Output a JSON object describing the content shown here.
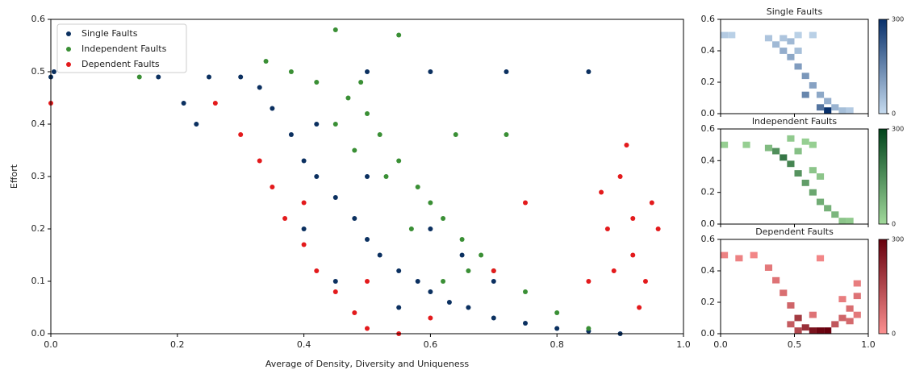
{
  "chart_data": [
    {
      "type": "scatter",
      "x_label": "Average of Density, Diversity and Uniqueness",
      "y_label": "Effort",
      "xlim": [
        0,
        1
      ],
      "ylim": [
        0,
        0.6
      ],
      "xticks": [
        {
          "value": 0,
          "label": "0.0"
        },
        {
          "value": 0.2,
          "label": "0.2"
        },
        {
          "value": 0.4,
          "label": "0.4"
        },
        {
          "value": 0.6,
          "label": "0.6"
        },
        {
          "value": 0.8,
          "label": "0.8"
        },
        {
          "value": 1,
          "label": "1.0"
        }
      ],
      "yticks": [
        {
          "value": 0,
          "label": "0.0"
        },
        {
          "value": 0.1,
          "label": "0.1"
        },
        {
          "value": 0.2,
          "label": "0.2"
        },
        {
          "value": 0.3,
          "label": "0.3"
        },
        {
          "value": 0.4,
          "label": "0.4"
        },
        {
          "value": 0.5,
          "label": "0.5"
        },
        {
          "value": 0.6,
          "label": "0.6"
        }
      ],
      "legend": "upper-left",
      "series": [
        {
          "name": "Single Faults",
          "color": "#0b3060",
          "x": [
            0.0,
            0.005,
            0.17,
            0.21,
            0.23,
            0.25,
            0.3,
            0.33,
            0.35,
            0.38,
            0.4,
            0.42,
            0.45,
            0.48,
            0.5,
            0.52,
            0.55,
            0.58,
            0.6,
            0.63,
            0.66,
            0.7,
            0.75,
            0.8,
            0.85,
            0.9,
            0.5,
            0.6,
            0.72,
            0.85,
            0.4,
            0.45,
            0.55,
            0.5,
            0.6,
            0.7,
            0.65,
            0.42
          ],
          "values": [
            0.49,
            0.5,
            0.49,
            0.44,
            0.4,
            0.49,
            0.49,
            0.47,
            0.43,
            0.38,
            0.33,
            0.3,
            0.26,
            0.22,
            0.18,
            0.15,
            0.12,
            0.1,
            0.08,
            0.06,
            0.05,
            0.03,
            0.02,
            0.01,
            0.005,
            0.0,
            0.5,
            0.5,
            0.5,
            0.5,
            0.2,
            0.1,
            0.05,
            0.3,
            0.2,
            0.1,
            0.15,
            0.4
          ]
        },
        {
          "name": "Independent Faults",
          "color": "#3a8f35",
          "x": [
            0.14,
            0.34,
            0.38,
            0.42,
            0.45,
            0.47,
            0.5,
            0.55,
            0.52,
            0.55,
            0.58,
            0.6,
            0.62,
            0.64,
            0.65,
            0.68,
            0.72,
            0.7,
            0.75,
            0.8,
            0.85,
            0.48,
            0.53,
            0.57,
            0.66,
            0.62,
            0.45,
            0.49
          ],
          "values": [
            0.49,
            0.52,
            0.5,
            0.48,
            0.58,
            0.45,
            0.42,
            0.57,
            0.38,
            0.33,
            0.28,
            0.25,
            0.22,
            0.38,
            0.18,
            0.15,
            0.38,
            0.12,
            0.08,
            0.04,
            0.01,
            0.35,
            0.3,
            0.2,
            0.12,
            0.1,
            0.4,
            0.48
          ]
        },
        {
          "name": "Dependent Faults",
          "color": "#e31a1c",
          "x": [
            0.0,
            0.26,
            0.3,
            0.33,
            0.35,
            0.37,
            0.4,
            0.42,
            0.45,
            0.48,
            0.5,
            0.55,
            0.6,
            0.7,
            0.75,
            0.88,
            0.9,
            0.92,
            0.94,
            0.95,
            0.93,
            0.91,
            0.96,
            0.89,
            0.87,
            0.85,
            0.92,
            0.5,
            0.4
          ],
          "values": [
            0.44,
            0.44,
            0.38,
            0.33,
            0.28,
            0.22,
            0.17,
            0.12,
            0.08,
            0.04,
            0.01,
            0.0,
            0.03,
            0.12,
            0.25,
            0.2,
            0.3,
            0.15,
            0.1,
            0.25,
            0.05,
            0.36,
            0.2,
            0.12,
            0.27,
            0.1,
            0.22,
            0.1,
            0.25
          ]
        }
      ]
    },
    {
      "type": "heatmap",
      "title": "Single Faults",
      "xlim": [
        0,
        1
      ],
      "ylim": [
        0,
        0.6
      ],
      "yticks": [
        {
          "value": 0,
          "label": "0.0"
        },
        {
          "value": 0.2,
          "label": "0.2"
        },
        {
          "value": 0.4,
          "label": "0.4"
        },
        {
          "value": 0.6,
          "label": "0.6"
        }
      ],
      "bin_size": [
        0.05,
        0.04
      ],
      "colors": [
        "#c6dbef",
        "#08306b"
      ],
      "clim": [
        0,
        300
      ],
      "cticks": [
        0,
        300
      ],
      "x": [
        0.0,
        0.05,
        0.3,
        0.35,
        0.4,
        0.45,
        0.5,
        0.55,
        0.6,
        0.65,
        0.7,
        0.75,
        0.8,
        0.85,
        0.5,
        0.6,
        0.7,
        0.55,
        0.65,
        0.45,
        0.4,
        0.5
      ],
      "y": [
        0.48,
        0.48,
        0.46,
        0.42,
        0.38,
        0.34,
        0.28,
        0.22,
        0.16,
        0.1,
        0.06,
        0.02,
        0.0,
        0.0,
        0.48,
        0.48,
        0.0,
        0.1,
        0.02,
        0.44,
        0.46,
        0.38
      ],
      "values": [
        30,
        20,
        40,
        60,
        80,
        90,
        110,
        120,
        100,
        90,
        80,
        70,
        50,
        30,
        20,
        20,
        300,
        150,
        180,
        60,
        40,
        50
      ]
    },
    {
      "type": "heatmap",
      "title": "Independent Faults",
      "xlim": [
        0,
        1
      ],
      "ylim": [
        0,
        0.6
      ],
      "yticks": [
        {
          "value": 0,
          "label": "0.0"
        },
        {
          "value": 0.2,
          "label": "0.2"
        },
        {
          "value": 0.4,
          "label": "0.4"
        },
        {
          "value": 0.6,
          "label": "0.6"
        }
      ],
      "bin_size": [
        0.05,
        0.04
      ],
      "colors": [
        "#a1d99b",
        "#00441b"
      ],
      "clim": [
        0,
        300
      ],
      "cticks": [
        0,
        300
      ],
      "x": [
        0.0,
        0.15,
        0.3,
        0.35,
        0.4,
        0.45,
        0.5,
        0.55,
        0.6,
        0.65,
        0.7,
        0.75,
        0.8,
        0.85,
        0.55,
        0.6,
        0.65,
        0.5,
        0.45,
        0.6
      ],
      "y": [
        0.48,
        0.48,
        0.46,
        0.44,
        0.4,
        0.36,
        0.3,
        0.24,
        0.18,
        0.12,
        0.08,
        0.04,
        0.0,
        0.0,
        0.5,
        0.48,
        0.28,
        0.44,
        0.52,
        0.32
      ],
      "values": [
        20,
        20,
        60,
        150,
        200,
        170,
        140,
        120,
        100,
        90,
        80,
        70,
        40,
        30,
        20,
        20,
        40,
        50,
        30,
        40
      ]
    },
    {
      "type": "heatmap",
      "title": "Dependent Faults",
      "xlim": [
        0,
        1
      ],
      "ylim": [
        0,
        0.6
      ],
      "xticks": [
        {
          "value": 0,
          "label": "0.0"
        },
        {
          "value": 0.5,
          "label": "0.5"
        },
        {
          "value": 1,
          "label": "1.0"
        }
      ],
      "yticks": [
        {
          "value": 0,
          "label": "0.0"
        },
        {
          "value": 0.2,
          "label": "0.2"
        },
        {
          "value": 0.4,
          "label": "0.4"
        },
        {
          "value": 0.6,
          "label": "0.6"
        }
      ],
      "bin_size": [
        0.05,
        0.04
      ],
      "colors": [
        "#fc9090",
        "#67000d"
      ],
      "clim": [
        0,
        300
      ],
      "cticks": [
        0,
        300
      ],
      "x": [
        0.0,
        0.1,
        0.2,
        0.3,
        0.35,
        0.4,
        0.45,
        0.5,
        0.55,
        0.6,
        0.65,
        0.7,
        0.75,
        0.8,
        0.85,
        0.9,
        0.9,
        0.85,
        0.5,
        0.6,
        0.65,
        0.9,
        0.8,
        0.45
      ],
      "y": [
        0.48,
        0.46,
        0.48,
        0.4,
        0.32,
        0.24,
        0.16,
        0.08,
        0.02,
        0.0,
        0.0,
        0.0,
        0.04,
        0.08,
        0.14,
        0.22,
        0.3,
        0.06,
        0.0,
        0.1,
        0.46,
        0.1,
        0.2,
        0.04
      ],
      "values": [
        30,
        30,
        20,
        50,
        60,
        70,
        90,
        180,
        200,
        260,
        290,
        300,
        120,
        90,
        70,
        60,
        40,
        80,
        150,
        60,
        20,
        50,
        40,
        110
      ]
    }
  ]
}
